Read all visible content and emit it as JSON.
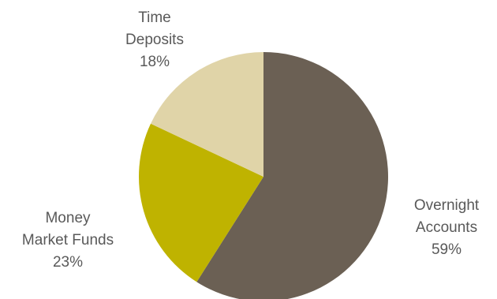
{
  "chart_data": {
    "type": "pie",
    "title": "",
    "slices": [
      {
        "label_lines": [
          "Overnight",
          "Accounts"
        ],
        "value": 59,
        "value_label": "59%",
        "color": "#6b6054"
      },
      {
        "label_lines": [
          "Money",
          "Market Funds"
        ],
        "value": 23,
        "value_label": "23%",
        "color": "#bfb300"
      },
      {
        "label_lines": [
          "Time",
          "Deposits"
        ],
        "value": 18,
        "value_label": "18%",
        "color": "#e0d4a8"
      }
    ],
    "start_angle": "12 o'clock",
    "direction": "clockwise",
    "legend": "none",
    "label_color": "#595959"
  }
}
